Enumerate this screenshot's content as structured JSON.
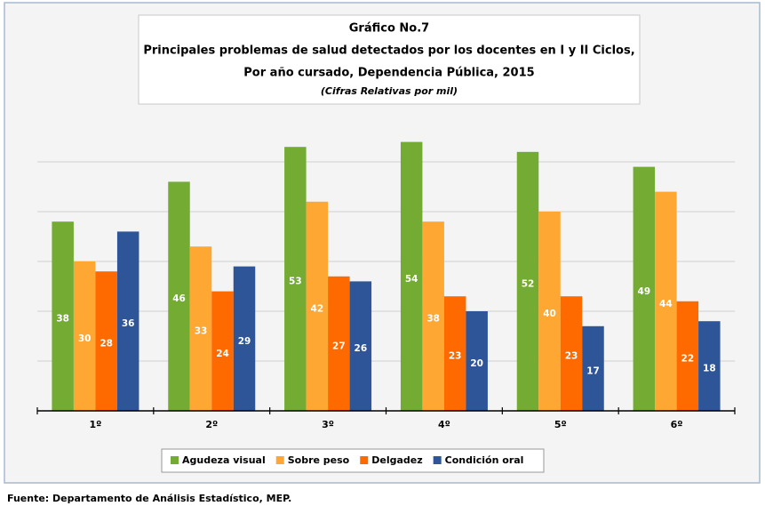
{
  "chart_data": {
    "type": "bar",
    "title": [
      "Gráfico No.7",
      "Principales problemas de salud detectados por los docentes en I y II Ciclos,",
      "Por año cursado, Dependencia Pública, 2015"
    ],
    "subtitle": "(Cifras Relativas por mil)",
    "categories": [
      "1º",
      "2º",
      "3º",
      "4º",
      "5º",
      "6º"
    ],
    "series": [
      {
        "name": "Agudeza visual",
        "color": "#74ac33",
        "values": [
          38,
          46,
          53,
          54,
          52,
          49
        ]
      },
      {
        "name": "Sobre peso",
        "color": "#ffa733",
        "values": [
          30,
          33,
          42,
          38,
          40,
          44
        ]
      },
      {
        "name": "Delgadez",
        "color": "#ff6a00",
        "values": [
          28,
          24,
          27,
          23,
          23,
          22
        ]
      },
      {
        "name": "Condición oral",
        "color": "#2e5597",
        "values": [
          36,
          29,
          26,
          20,
          17,
          18
        ]
      }
    ],
    "ylim": [
      0,
      60
    ],
    "yticks": [
      0,
      10,
      20,
      30,
      40,
      50
    ],
    "grid": true,
    "source": "Fuente: Departamento de Análisis Estadístico, MEP."
  }
}
